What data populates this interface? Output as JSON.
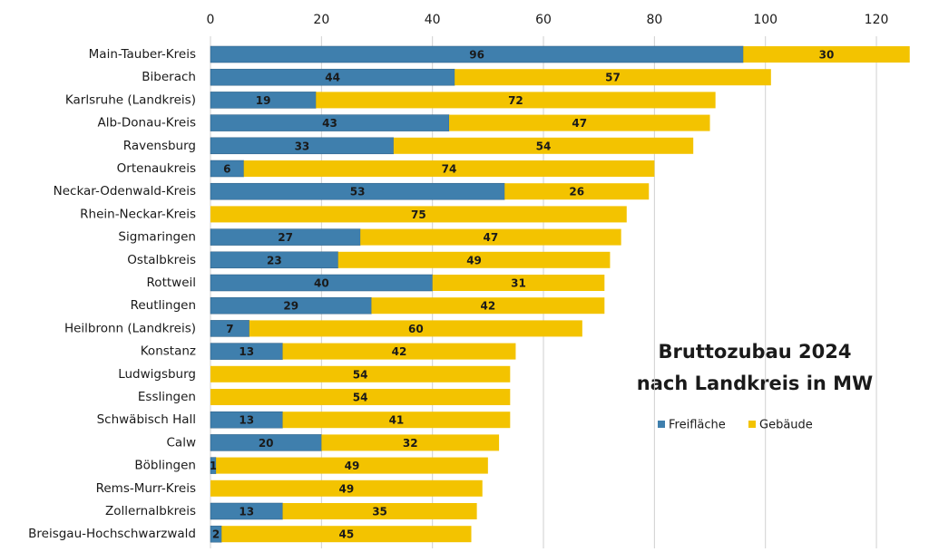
{
  "chart_data": {
    "type": "stacked-bar-horizontal",
    "title": "Bruttozubau 2024",
    "subtitle": "nach Landkreis in MW",
    "categories": [
      "Main-Tauber-Kreis",
      "Biberach",
      "Karlsruhe (Landkreis)",
      "Alb-Donau-Kreis",
      "Ravensburg",
      "Ortenaukreis",
      "Neckar-Odenwald-Kreis",
      "Rhein-Neckar-Kreis",
      "Sigmaringen",
      "Ostalbkreis",
      "Rottweil",
      "Reutlingen",
      "Heilbronn (Landkreis)",
      "Konstanz",
      "Ludwigsburg",
      "Esslingen",
      "Schwäbisch Hall",
      "Calw",
      "Böblingen",
      "Rems-Murr-Kreis",
      "Zollernalbkreis",
      "Breisgau-Hochschwarzwald"
    ],
    "series": [
      {
        "name": "Freifläche",
        "color": "#3f7fad",
        "values": [
          96,
          44,
          19,
          43,
          33,
          6,
          53,
          0,
          27,
          23,
          40,
          29,
          7,
          13,
          0,
          0,
          13,
          20,
          1,
          0,
          13,
          2
        ]
      },
      {
        "name": "Gebäude",
        "color": "#f3c300",
        "values": [
          30,
          57,
          72,
          47,
          54,
          74,
          26,
          75,
          47,
          49,
          31,
          42,
          60,
          42,
          54,
          54,
          41,
          32,
          49,
          49,
          35,
          45
        ]
      }
    ],
    "xlim": [
      0,
      126
    ],
    "xticks": [
      0,
      20,
      40,
      60,
      80,
      100,
      120
    ],
    "grid": true
  }
}
